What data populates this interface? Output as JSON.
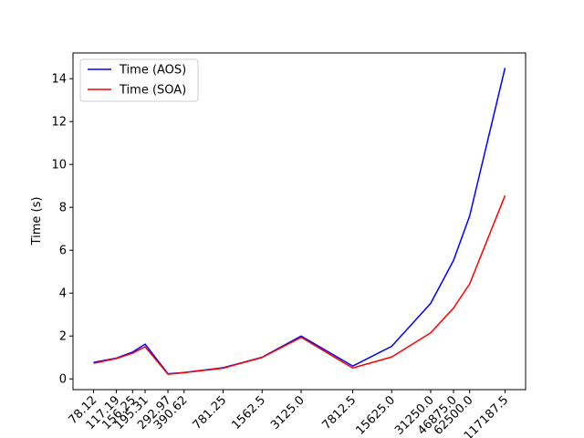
{
  "chart_data": {
    "type": "line",
    "title": "",
    "xlabel": "",
    "ylabel": "Time (s)",
    "x_scale": "log",
    "x": [
      78.12,
      117.19,
      156.25,
      195.31,
      292.97,
      390.62,
      781.25,
      1562.5,
      3125.0,
      7812.5,
      15625.0,
      31250.0,
      46875.0,
      62500.0,
      117187.5
    ],
    "x_tick_labels": [
      "78.12",
      "117.19",
      "156.25",
      "195.31",
      "292.97",
      "390.62",
      "781.25",
      "1562.5",
      "3125.0",
      "7812.5",
      "15625.0",
      "31250.0",
      "46875.0",
      "62500.0",
      "117187.5"
    ],
    "ylim": [
      -0.5,
      15.2
    ],
    "y_ticks": [
      0,
      2,
      4,
      6,
      8,
      10,
      12,
      14
    ],
    "y_tick_labels": [
      "0",
      "2",
      "4",
      "6",
      "8",
      "10",
      "12",
      "14"
    ],
    "grid": false,
    "legend_position": "top-left",
    "series": [
      {
        "name": "Time (AOS)",
        "color": "#0000ff",
        "values": [
          0.77,
          0.97,
          1.25,
          1.62,
          0.24,
          0.3,
          0.52,
          1.01,
          2.0,
          0.6,
          1.52,
          3.52,
          5.52,
          7.6,
          14.5
        ]
      },
      {
        "name": "Time (SOA)",
        "color": "#ff0000",
        "values": [
          0.73,
          0.95,
          1.2,
          1.5,
          0.22,
          0.29,
          0.5,
          1.0,
          1.94,
          0.51,
          1.02,
          2.15,
          3.3,
          4.43,
          8.55
        ]
      }
    ]
  }
}
